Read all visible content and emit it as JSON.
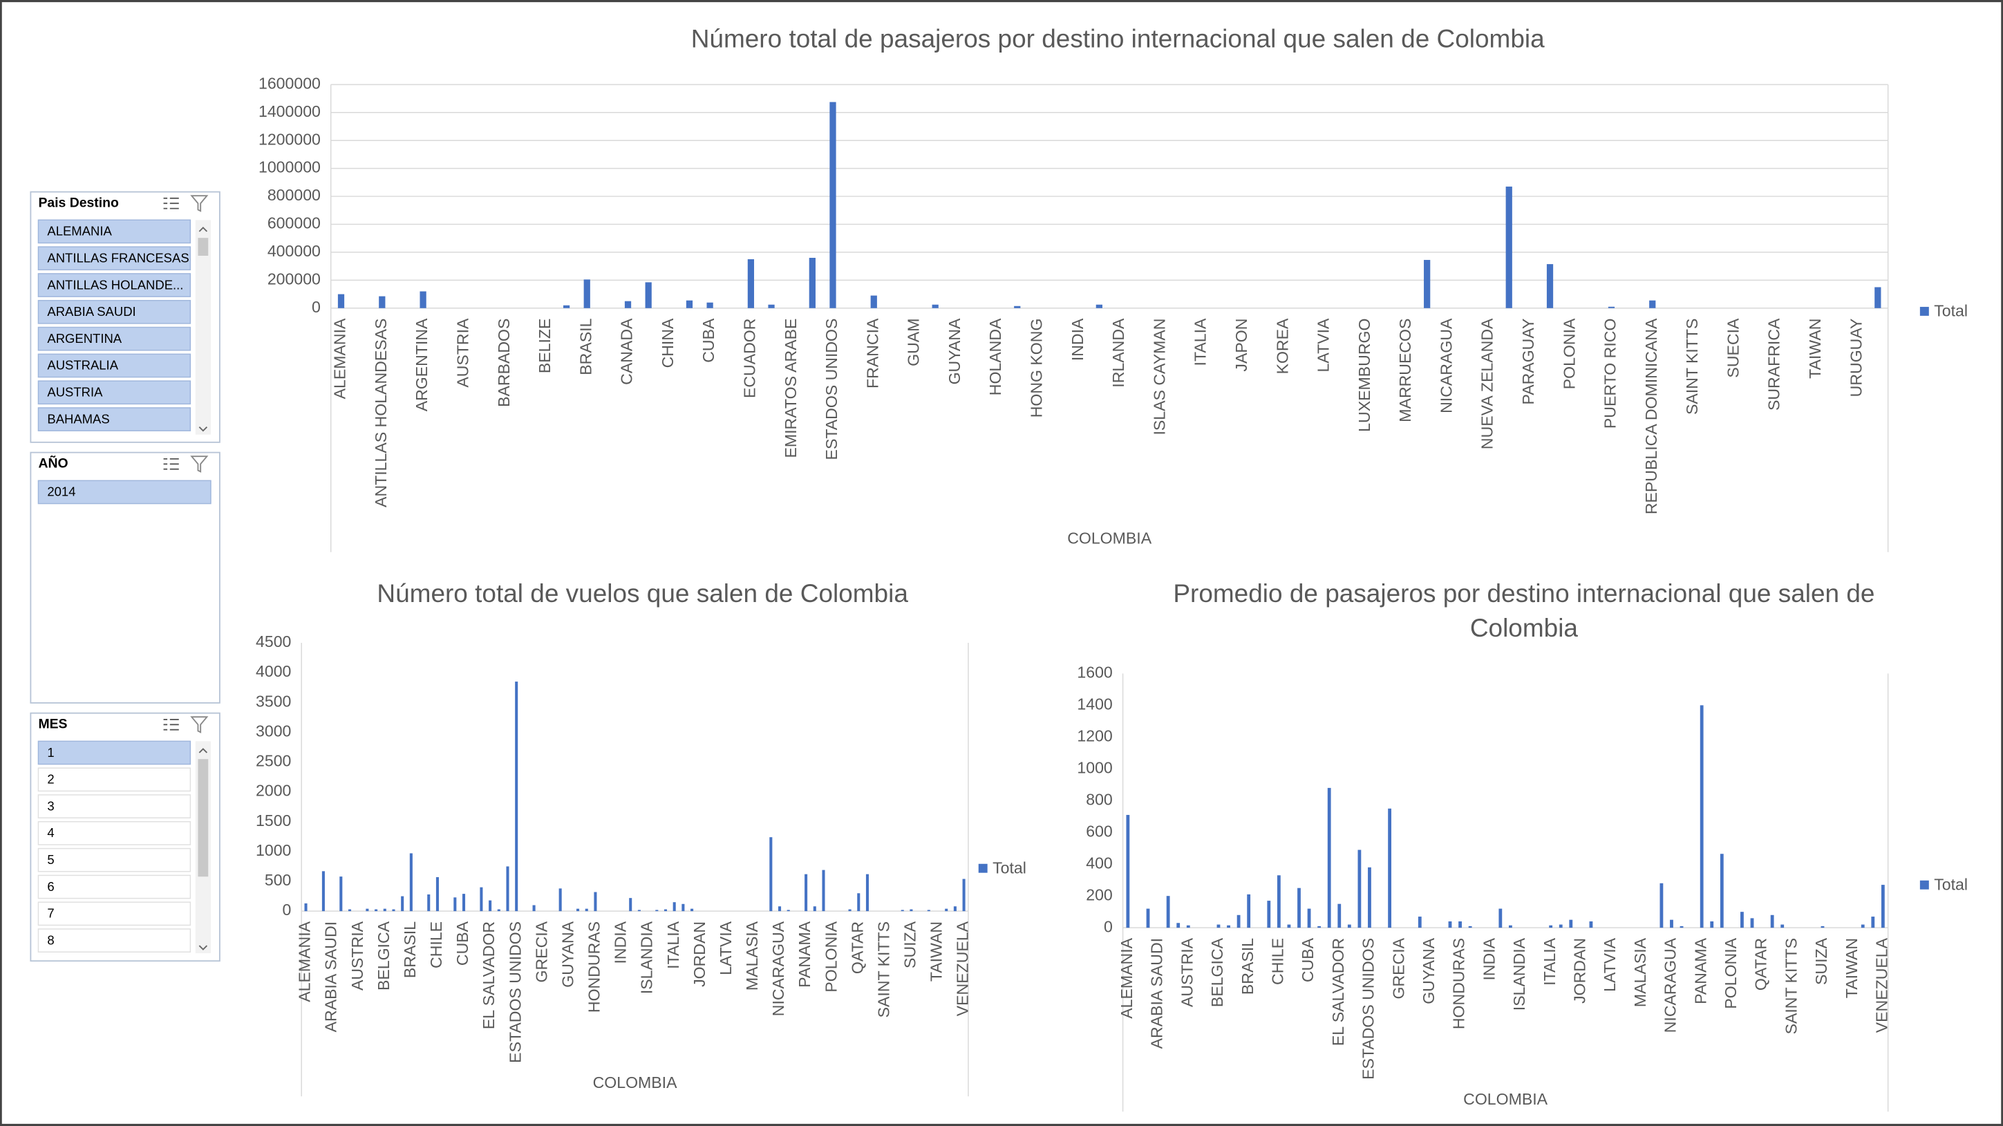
{
  "chart_data": [
    {
      "type": "bar",
      "title": "Número total de pasajeros por destino internacional que salen de Colombia",
      "x_label": "COLOMBIA",
      "categories": [
        "ALEMANIA",
        null,
        "ANTILLAS HOLANDESAS",
        null,
        "ARGENTINA",
        null,
        "AUSTRIA",
        null,
        "BARBADOS",
        null,
        "BELIZE",
        null,
        "BRASIL",
        null,
        "CANADA",
        null,
        "CHINA",
        null,
        "CUBA",
        null,
        "ECUADOR",
        null,
        "EMIRATOS ARABE",
        null,
        "ESTADOS UNIDOS",
        null,
        "FRANCIA",
        null,
        "GUAM",
        null,
        "GUYANA",
        null,
        "HOLANDA",
        null,
        "HONG KONG",
        null,
        "INDIA",
        null,
        "IRLANDA",
        null,
        "ISLAS CAYMAN",
        null,
        "ITALIA",
        null,
        "JAPON",
        null,
        "KOREA",
        null,
        "LATVIA",
        null,
        "LUXEMBURGO",
        null,
        "MARRUECOS",
        null,
        "NICARAGUA",
        null,
        "NUEVA ZELANDA",
        null,
        "PARAGUAY",
        null,
        "POLONIA",
        null,
        "PUERTO RICO",
        null,
        "REPUBLICA DOMINICANA",
        null,
        "SAINT KITTS",
        null,
        "SUECIA",
        null,
        "SURAFRICA",
        null,
        "TAIWAN",
        null,
        "URUGUAY",
        null
      ],
      "series": [
        {
          "name": "Total",
          "color": "#4472c4",
          "values": [
            100000,
            0,
            85000,
            0,
            120000,
            0,
            0,
            0,
            0,
            0,
            0,
            20000,
            205000,
            0,
            50000,
            185000,
            0,
            55000,
            40000,
            0,
            350000,
            25000,
            0,
            360000,
            1475000,
            0,
            90000,
            0,
            0,
            25000,
            0,
            0,
            0,
            15000,
            0,
            0,
            0,
            25000,
            0,
            0,
            0,
            0,
            0,
            0,
            0,
            0,
            0,
            0,
            0,
            0,
            0,
            0,
            0,
            345000,
            0,
            0,
            0,
            870000,
            0,
            315000,
            0,
            0,
            10000,
            0,
            55000,
            0,
            0,
            0,
            0,
            0,
            0,
            0,
            0,
            0,
            0,
            150000
          ]
        }
      ],
      "ylim": [
        0,
        1600000
      ],
      "yticks": [
        0,
        200000,
        400000,
        600000,
        800000,
        1000000,
        1200000,
        1400000,
        1600000
      ],
      "grid": true,
      "legend": "right"
    },
    {
      "type": "bar",
      "title": "Número total de vuelos que salen de Colombia",
      "x_label": "COLOMBIA",
      "categories": [
        "ALEMANIA",
        null,
        null,
        "ARABIA SAUDI",
        null,
        null,
        "AUSTRIA",
        null,
        null,
        "BELGICA",
        null,
        null,
        "BRASIL",
        null,
        null,
        "CHILE",
        null,
        null,
        "CUBA",
        null,
        null,
        "EL SALVADOR",
        null,
        null,
        "ESTADOS UNIDOS",
        null,
        null,
        "GRECIA",
        null,
        null,
        "GUYANA",
        null,
        null,
        "HONDURAS",
        null,
        null,
        "INDIA",
        null,
        null,
        "ISLANDIA",
        null,
        null,
        "ITALIA",
        null,
        null,
        "JORDAN",
        null,
        null,
        "LATVIA",
        null,
        null,
        "MALASIA",
        null,
        null,
        "NICARAGUA",
        null,
        null,
        "PANAMA",
        null,
        null,
        "POLONIA",
        null,
        null,
        "QATAR",
        null,
        null,
        "SAINT KITTS",
        null,
        null,
        "SUIZA",
        null,
        null,
        "TAIWAN",
        null,
        null,
        "VENEZUELA"
      ],
      "series": [
        {
          "name": "Total",
          "color": "#4472c4",
          "values": [
            130,
            0,
            670,
            0,
            580,
            30,
            0,
            40,
            30,
            40,
            30,
            250,
            970,
            0,
            280,
            570,
            0,
            230,
            290,
            0,
            400,
            180,
            30,
            750,
            3850,
            0,
            100,
            0,
            0,
            380,
            0,
            40,
            40,
            320,
            0,
            0,
            0,
            220,
            20,
            0,
            20,
            30,
            150,
            120,
            40,
            0,
            0,
            0,
            0,
            0,
            0,
            0,
            0,
            1240,
            80,
            20,
            0,
            620,
            80,
            690,
            0,
            0,
            30,
            300,
            620,
            0,
            0,
            0,
            20,
            30,
            0,
            20,
            0,
            40,
            80,
            540
          ]
        }
      ],
      "ylim": [
        0,
        4500
      ],
      "yticks": [
        0,
        500,
        1000,
        1500,
        2000,
        2500,
        3000,
        3500,
        4000,
        4500
      ],
      "grid": false,
      "legend": "right"
    },
    {
      "type": "bar",
      "title": "Promedio de pasajeros por destino internacional  que salen de Colombia",
      "x_label": "COLOMBIA",
      "categories": [
        "ALEMANIA",
        null,
        null,
        "ARABIA SAUDI",
        null,
        null,
        "AUSTRIA",
        null,
        null,
        "BELGICA",
        null,
        null,
        "BRASIL",
        null,
        null,
        "CHILE",
        null,
        null,
        "CUBA",
        null,
        null,
        "EL SALVADOR",
        null,
        null,
        "ESTADOS UNIDOS",
        null,
        null,
        "GRECIA",
        null,
        null,
        "GUYANA",
        null,
        null,
        "HONDURAS",
        null,
        null,
        "INDIA",
        null,
        null,
        "ISLANDIA",
        null,
        null,
        "ITALIA",
        null,
        null,
        "JORDAN",
        null,
        null,
        "LATVIA",
        null,
        null,
        "MALASIA",
        null,
        null,
        "NICARAGUA",
        null,
        null,
        "PANAMA",
        null,
        null,
        "POLONIA",
        null,
        null,
        "QATAR",
        null,
        null,
        "SAINT KITTS",
        null,
        null,
        "SUIZA",
        null,
        null,
        "TAIWAN",
        null,
        null,
        "VENEZUELA"
      ],
      "series": [
        {
          "name": "Total",
          "color": "#4472c4",
          "values": [
            710,
            0,
            120,
            0,
            200,
            30,
            15,
            0,
            0,
            20,
            15,
            80,
            210,
            0,
            170,
            330,
            20,
            250,
            120,
            10,
            880,
            150,
            20,
            490,
            380,
            0,
            750,
            0,
            0,
            70,
            0,
            0,
            40,
            40,
            10,
            0,
            0,
            120,
            15,
            0,
            0,
            0,
            15,
            20,
            50,
            0,
            40,
            0,
            0,
            0,
            0,
            0,
            0,
            280,
            50,
            10,
            0,
            1400,
            40,
            465,
            0,
            100,
            60,
            0,
            80,
            20,
            0,
            0,
            0,
            10,
            0,
            0,
            0,
            20,
            70,
            270
          ]
        }
      ],
      "ylim": [
        0,
        1600
      ],
      "yticks": [
        0,
        200,
        400,
        600,
        800,
        1000,
        1200,
        1400,
        1600
      ],
      "grid": false,
      "legend": "right"
    }
  ],
  "slicers": [
    {
      "title": "Pais Destino",
      "items": [
        {
          "text": "ALEMANIA",
          "selected": true
        },
        {
          "text": "ANTILLAS FRANCESAS",
          "selected": true
        },
        {
          "text": "ANTILLAS HOLANDE...",
          "selected": true
        },
        {
          "text": "ARABIA SAUDI",
          "selected": true
        },
        {
          "text": "ARGENTINA",
          "selected": true
        },
        {
          "text": "AUSTRALIA",
          "selected": true
        },
        {
          "text": "AUSTRIA",
          "selected": true
        },
        {
          "text": "BAHAMAS",
          "selected": true
        }
      ]
    },
    {
      "title": "AÑO",
      "items": [
        {
          "text": 2014,
          "selected": true
        }
      ]
    },
    {
      "title": "MES",
      "items": [
        {
          "text": 1,
          "selected": true
        },
        {
          "text": 2,
          "selected": false
        },
        {
          "text": 3,
          "selected": false
        },
        {
          "text": 4,
          "selected": false
        },
        {
          "text": 5,
          "selected": false
        },
        {
          "text": 6,
          "selected": false
        },
        {
          "text": 7,
          "selected": false
        },
        {
          "text": 8,
          "selected": false
        }
      ]
    }
  ]
}
